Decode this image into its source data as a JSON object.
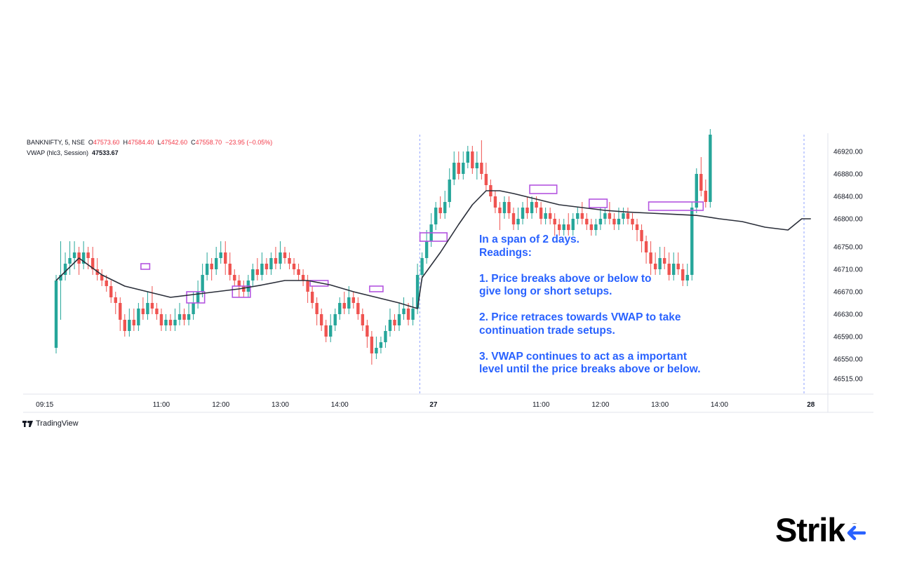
{
  "header": {
    "symbol": "BANKNIFTY, 5, NSE",
    "o_label": "O",
    "o_value": "47573.60",
    "h_label": "H",
    "h_value": "47584.40",
    "l_label": "L",
    "l_value": "47542.60",
    "c_label": "C",
    "c_value": "47558.70",
    "change": "−23.95 (−0.05%)",
    "indicator_label": "VWAP (hlc3, Session)",
    "indicator_value": "47533.67"
  },
  "annotation": {
    "line1": "In a span of 2 days.",
    "line2": "Readings:",
    "point1_a": "1. Price breaks above or below to",
    "point1_b": "give long or short setups.",
    "point2_a": "2. Price retraces towards VWAP to take",
    "point2_b": "continuation trade setups.",
    "point3_a": "3. VWAP continues to act as a important",
    "point3_b": "level until the price breaks above or below."
  },
  "branding": {
    "tradingview": "TradingView",
    "strike": "Strike"
  },
  "colors": {
    "up": "#26a69a",
    "down": "#ef5350",
    "vwap": "#2a2e39",
    "box": "#b455e0",
    "annotation": "#2962ff",
    "separator": "#8ea2ff"
  },
  "chart_data": {
    "type": "candlestick",
    "title": "",
    "xlabel": "",
    "ylabel": "",
    "y_ticks": [
      "46920.00",
      "46880.00",
      "46840.00",
      "46800.00",
      "46750.00",
      "46710.00",
      "46670.00",
      "46630.00",
      "46590.00",
      "46550.00",
      "46515.00"
    ],
    "x_ticks": [
      "09:15",
      "11:00",
      "12:00",
      "13:00",
      "14:00",
      "27",
      "11:00",
      "12:00",
      "13:00",
      "14:00",
      "28"
    ],
    "ylim": [
      46490,
      46950
    ],
    "candles": [
      [
        46570,
        46690,
        46560,
        46700
      ],
      [
        46690,
        46700,
        46620,
        46760
      ],
      [
        46700,
        46720,
        46690,
        46740
      ],
      [
        46720,
        46730,
        46700,
        46760
      ],
      [
        46730,
        46740,
        46710,
        46760
      ],
      [
        46740,
        46720,
        46700,
        46750
      ],
      [
        46720,
        46740,
        46710,
        46760
      ],
      [
        46740,
        46730,
        46710,
        46750
      ],
      [
        46730,
        46710,
        46700,
        46750
      ],
      [
        46710,
        46700,
        46690,
        46730
      ],
      [
        46700,
        46690,
        46680,
        46710
      ],
      [
        46690,
        46680,
        46670,
        46700
      ],
      [
        46680,
        46660,
        46650,
        46690
      ],
      [
        46660,
        46650,
        46630,
        46670
      ],
      [
        46650,
        46620,
        46600,
        46660
      ],
      [
        46620,
        46600,
        46590,
        46630
      ],
      [
        46600,
        46620,
        46590,
        46640
      ],
      [
        46620,
        46610,
        46600,
        46640
      ],
      [
        46610,
        46640,
        46600,
        46650
      ],
      [
        46640,
        46630,
        46620,
        46660
      ],
      [
        46630,
        46650,
        46620,
        46670
      ],
      [
        46650,
        46640,
        46630,
        46680
      ],
      [
        46640,
        46630,
        46620,
        46650
      ],
      [
        46630,
        46610,
        46600,
        46640
      ],
      [
        46610,
        46620,
        46600,
        46630
      ],
      [
        46620,
        46610,
        46600,
        46630
      ],
      [
        46610,
        46620,
        46600,
        46640
      ],
      [
        46620,
        46630,
        46610,
        46650
      ],
      [
        46630,
        46620,
        46610,
        46640
      ],
      [
        46620,
        46630,
        46610,
        46650
      ],
      [
        46630,
        46650,
        46620,
        46670
      ],
      [
        46650,
        46670,
        46640,
        46690
      ],
      [
        46670,
        46700,
        46660,
        46720
      ],
      [
        46700,
        46720,
        46690,
        46740
      ],
      [
        46720,
        46710,
        46690,
        46730
      ],
      [
        46710,
        46730,
        46700,
        46750
      ],
      [
        46730,
        46740,
        46720,
        46760
      ],
      [
        46740,
        46720,
        46700,
        46760
      ],
      [
        46720,
        46700,
        46690,
        46740
      ],
      [
        46700,
        46690,
        46680,
        46710
      ],
      [
        46690,
        46680,
        46660,
        46700
      ],
      [
        46680,
        46670,
        46660,
        46690
      ],
      [
        46670,
        46690,
        46660,
        46700
      ],
      [
        46690,
        46710,
        46680,
        46720
      ],
      [
        46710,
        46700,
        46690,
        46730
      ],
      [
        46700,
        46720,
        46690,
        46740
      ],
      [
        46720,
        46710,
        46700,
        46730
      ],
      [
        46710,
        46730,
        46700,
        46740
      ],
      [
        46730,
        46720,
        46710,
        46750
      ],
      [
        46720,
        46740,
        46710,
        46760
      ],
      [
        46740,
        46730,
        46720,
        46750
      ],
      [
        46730,
        46720,
        46710,
        46740
      ],
      [
        46720,
        46710,
        46700,
        46730
      ],
      [
        46710,
        46700,
        46690,
        46720
      ],
      [
        46700,
        46690,
        46680,
        46710
      ],
      [
        46690,
        46670,
        46650,
        46700
      ],
      [
        46670,
        46650,
        46640,
        46680
      ],
      [
        46650,
        46630,
        46610,
        46660
      ],
      [
        46630,
        46610,
        46600,
        46640
      ],
      [
        46610,
        46590,
        46580,
        46620
      ],
      [
        46590,
        46610,
        46580,
        46630
      ],
      [
        46610,
        46630,
        46600,
        46640
      ],
      [
        46630,
        46650,
        46620,
        46660
      ],
      [
        46650,
        46640,
        46630,
        46670
      ],
      [
        46640,
        46660,
        46630,
        46680
      ],
      [
        46660,
        46650,
        46640,
        46670
      ],
      [
        46650,
        46630,
        46620,
        46660
      ],
      [
        46630,
        46610,
        46600,
        46640
      ],
      [
        46610,
        46590,
        46570,
        46620
      ],
      [
        46590,
        46560,
        46540,
        46600
      ],
      [
        46560,
        46570,
        46550,
        46590
      ],
      [
        46570,
        46580,
        46560,
        46590
      ],
      [
        46580,
        46600,
        46570,
        46610
      ],
      [
        46600,
        46620,
        46590,
        46640
      ],
      [
        46620,
        46610,
        46600,
        46630
      ],
      [
        46610,
        46630,
        46600,
        46650
      ],
      [
        46630,
        46640,
        46620,
        46660
      ],
      [
        46640,
        46620,
        46610,
        46650
      ],
      [
        46620,
        46640,
        46610,
        46660
      ],
      [
        46640,
        46700,
        46630,
        46720
      ],
      [
        46700,
        46730,
        46690,
        46740
      ],
      [
        46730,
        46760,
        46720,
        46780
      ],
      [
        46760,
        46790,
        46750,
        46810
      ],
      [
        46790,
        46820,
        46780,
        46830
      ],
      [
        46820,
        46810,
        46800,
        46840
      ],
      [
        46810,
        46830,
        46800,
        46850
      ],
      [
        46830,
        46870,
        46820,
        46890
      ],
      [
        46870,
        46900,
        46860,
        46920
      ],
      [
        46900,
        46880,
        46870,
        46920
      ],
      [
        46880,
        46900,
        46870,
        46920
      ],
      [
        46900,
        46920,
        46890,
        46930
      ],
      [
        46920,
        46890,
        46880,
        46930
      ],
      [
        46890,
        46900,
        46870,
        46920
      ],
      [
        46900,
        46880,
        46870,
        46940
      ],
      [
        46880,
        46860,
        46850,
        46900
      ],
      [
        46860,
        46840,
        46830,
        46870
      ],
      [
        46840,
        46820,
        46810,
        46850
      ],
      [
        46820,
        46810,
        46780,
        46830
      ],
      [
        46810,
        46830,
        46800,
        46840
      ],
      [
        46830,
        46810,
        46800,
        46840
      ],
      [
        46810,
        46790,
        46780,
        46820
      ],
      [
        46790,
        46800,
        46780,
        46820
      ],
      [
        46800,
        46820,
        46790,
        46830
      ],
      [
        46820,
        46810,
        46800,
        46840
      ],
      [
        46810,
        46830,
        46800,
        46840
      ],
      [
        46830,
        46820,
        46810,
        46840
      ],
      [
        46820,
        46800,
        46790,
        46830
      ],
      [
        46800,
        46810,
        46790,
        46820
      ],
      [
        46810,
        46800,
        46790,
        46820
      ],
      [
        46800,
        46790,
        46770,
        46810
      ],
      [
        46790,
        46780,
        46770,
        46800
      ],
      [
        46780,
        46790,
        46770,
        46800
      ],
      [
        46790,
        46780,
        46770,
        46810
      ],
      [
        46780,
        46800,
        46770,
        46810
      ],
      [
        46800,
        46810,
        46790,
        46820
      ],
      [
        46810,
        46800,
        46790,
        46830
      ],
      [
        46800,
        46790,
        46780,
        46810
      ],
      [
        46790,
        46780,
        46770,
        46800
      ],
      [
        46780,
        46790,
        46770,
        46800
      ],
      [
        46790,
        46800,
        46780,
        46820
      ],
      [
        46800,
        46810,
        46790,
        46820
      ],
      [
        46810,
        46800,
        46790,
        46830
      ],
      [
        46800,
        46790,
        46780,
        46810
      ],
      [
        46790,
        46800,
        46780,
        46820
      ],
      [
        46800,
        46810,
        46790,
        46820
      ],
      [
        46810,
        46800,
        46790,
        46820
      ],
      [
        46800,
        46790,
        46780,
        46810
      ],
      [
        46790,
        46780,
        46760,
        46800
      ],
      [
        46780,
        46760,
        46740,
        46790
      ],
      [
        46760,
        46740,
        46720,
        46770
      ],
      [
        46740,
        46720,
        46700,
        46760
      ],
      [
        46720,
        46710,
        46700,
        46740
      ],
      [
        46710,
        46730,
        46700,
        46750
      ],
      [
        46730,
        46720,
        46710,
        46750
      ],
      [
        46720,
        46700,
        46690,
        46740
      ],
      [
        46700,
        46720,
        46690,
        46740
      ],
      [
        46720,
        46710,
        46700,
        46740
      ],
      [
        46710,
        46690,
        46680,
        46720
      ],
      [
        46690,
        46700,
        46680,
        46720
      ],
      [
        46700,
        46820,
        46690,
        46830
      ],
      [
        46820,
        46880,
        46810,
        46890
      ],
      [
        46880,
        46850,
        46840,
        46910
      ],
      [
        46850,
        46830,
        46820,
        46870
      ],
      [
        46830,
        46950,
        46820,
        46960
      ]
    ],
    "vwap": [
      [
        0,
        46690
      ],
      [
        5,
        46730
      ],
      [
        10,
        46700
      ],
      [
        15,
        46680
      ],
      [
        20,
        46670
      ],
      [
        25,
        46660
      ],
      [
        30,
        46665
      ],
      [
        35,
        46670
      ],
      [
        40,
        46675
      ],
      [
        45,
        46682
      ],
      [
        50,
        46690
      ],
      [
        55,
        46690
      ],
      [
        60,
        46682
      ],
      [
        65,
        46670
      ],
      [
        70,
        46660
      ],
      [
        75,
        46650
      ],
      [
        79,
        46640
      ],
      [
        80,
        46695
      ],
      [
        84,
        46740
      ],
      [
        88,
        46790
      ],
      [
        91,
        46825
      ],
      [
        94,
        46850
      ],
      [
        97,
        46850
      ],
      [
        100,
        46845
      ],
      [
        105,
        46835
      ],
      [
        110,
        46825
      ],
      [
        115,
        46820
      ],
      [
        120,
        46815
      ],
      [
        125,
        46812
      ],
      [
        130,
        46810
      ],
      [
        135,
        46808
      ],
      [
        140,
        46806
      ],
      [
        141,
        46805
      ],
      [
        145,
        46800
      ],
      [
        150,
        46795
      ],
      [
        155,
        46785
      ],
      [
        160,
        46780
      ],
      [
        163,
        46800
      ],
      [
        165,
        46800
      ]
    ],
    "highlight_boxes": [
      {
        "from": 19,
        "to": 20,
        "low": 46710,
        "high": 46720
      },
      {
        "from": 29,
        "to": 32,
        "low": 46650,
        "high": 46670
      },
      {
        "from": 39,
        "to": 42,
        "low": 46660,
        "high": 46680
      },
      {
        "from": 56,
        "to": 59,
        "low": 46680,
        "high": 46690
      },
      {
        "from": 69,
        "to": 71,
        "low": 46670,
        "high": 46680
      },
      {
        "from": 80,
        "to": 85,
        "low": 46760,
        "high": 46775
      },
      {
        "from": 104,
        "to": 109,
        "low": 46845,
        "high": 46860
      },
      {
        "from": 117,
        "to": 120,
        "low": 46820,
        "high": 46835
      },
      {
        "from": 130,
        "to": 141,
        "low": 46815,
        "high": 46830
      }
    ],
    "session_breaks": [
      79.5,
      163.5
    ]
  }
}
